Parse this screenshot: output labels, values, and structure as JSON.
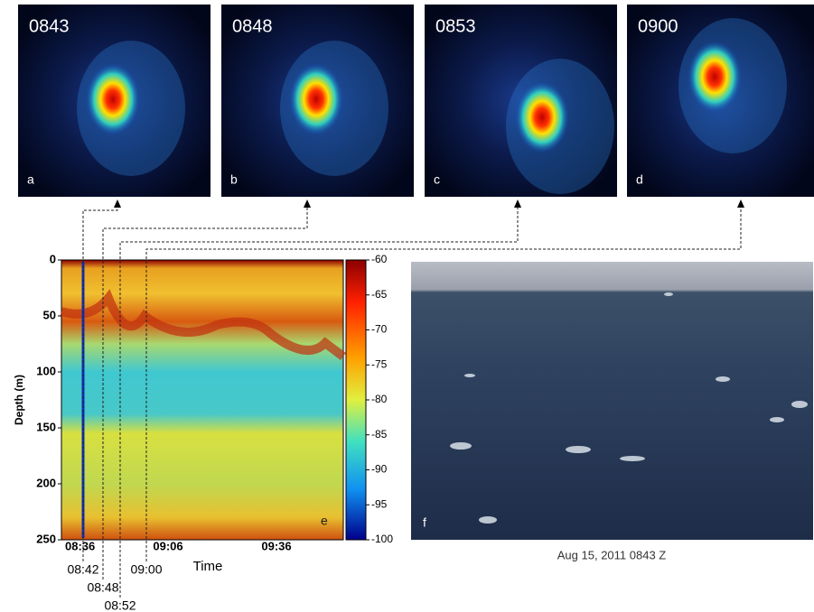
{
  "panels": [
    {
      "time": "0843",
      "letter": "a"
    },
    {
      "time": "0848",
      "letter": "b"
    },
    {
      "time": "0853",
      "letter": "c"
    },
    {
      "time": "0900",
      "letter": "d"
    }
  ],
  "echogram": {
    "letter": "e",
    "y_label": "Depth (m)",
    "x_label": "Time",
    "depth_ticks": [
      "0",
      "50",
      "100",
      "150",
      "200",
      "250"
    ],
    "time_ticks": [
      "08:36",
      "09:06",
      "09:36"
    ],
    "marker_times": [
      "08:42",
      "08:48",
      "08:52",
      "09:00"
    ],
    "colorbar_ticks": [
      "-60",
      "-65",
      "-70",
      "-75",
      "-80",
      "-85",
      "-90",
      "-95",
      "-100"
    ]
  },
  "photo": {
    "letter": "f",
    "caption": "Aug 15, 2011 0843 Z"
  }
}
